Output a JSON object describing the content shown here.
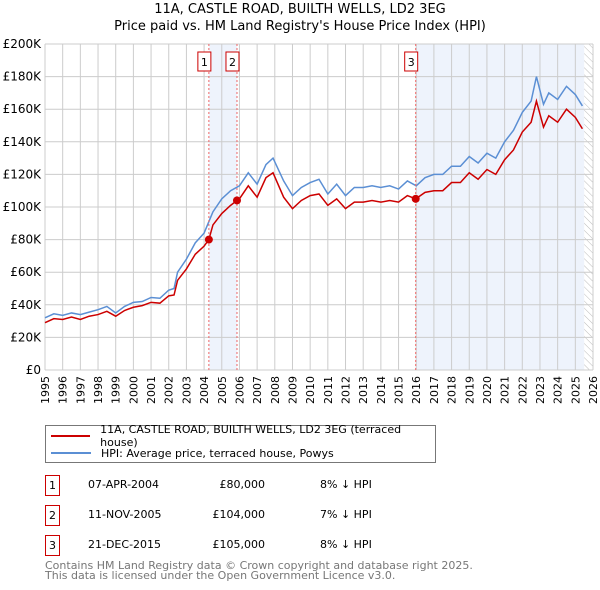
{
  "chart_data": {
    "type": "line",
    "title": "11A, CASTLE ROAD, BUILTH WELLS, LD2 3EG",
    "subtitle": "Price paid vs. HM Land Registry's House Price Index (HPI)",
    "xlim": [
      1995,
      2026
    ],
    "ylim": [
      0,
      200000
    ],
    "y_ticks": [
      "£0",
      "£20K",
      "£40K",
      "£60K",
      "£80K",
      "£100K",
      "£120K",
      "£140K",
      "£160K",
      "£180K",
      "£200K"
    ],
    "x_ticks": [
      "1995",
      "1996",
      "1997",
      "1998",
      "1999",
      "2000",
      "2001",
      "2002",
      "2003",
      "2004",
      "2005",
      "2006",
      "2007",
      "2008",
      "2009",
      "2010",
      "2011",
      "2012",
      "2013",
      "2014",
      "2015",
      "2016",
      "2017",
      "2018",
      "2019",
      "2020",
      "2021",
      "2022",
      "2023",
      "2024",
      "2025",
      "2026"
    ],
    "series": [
      {
        "name": "HPI: Average price, terraced house, Powys",
        "color": "#5b8fd4",
        "x": [
          1995,
          1995.5,
          1996,
          1996.5,
          1997,
          1997.5,
          1998,
          1998.5,
          1999,
          1999.5,
          2000,
          2000.5,
          2001,
          2001.5,
          2002,
          2002.3,
          2002.5,
          2003,
          2003.5,
          2004,
          2004.5,
          2005,
          2005.5,
          2006,
          2006.5,
          2007,
          2007.5,
          2007.9,
          2008.5,
          2009,
          2009.5,
          2010,
          2010.5,
          2011,
          2011.5,
          2012,
          2012.5,
          2013,
          2013.5,
          2014,
          2014.5,
          2015,
          2015.5,
          2016,
          2016.5,
          2017,
          2017.5,
          2018,
          2018.5,
          2019,
          2019.5,
          2020,
          2020.5,
          2021,
          2021.5,
          2022,
          2022.5,
          2022.8,
          2023.2,
          2023.5,
          2024,
          2024.5,
          2025,
          2025.4
        ],
        "y": [
          32000,
          34500,
          33500,
          35000,
          34000,
          35500,
          37000,
          39000,
          35000,
          39000,
          41500,
          42000,
          44500,
          44000,
          49000,
          50000,
          60000,
          68000,
          78000,
          84000,
          97000,
          105000,
          110000,
          113000,
          121000,
          114000,
          126000,
          130000,
          116000,
          107000,
          112000,
          115000,
          117000,
          108000,
          114000,
          107000,
          112000,
          112000,
          113000,
          112000,
          113000,
          111000,
          116000,
          113000,
          118000,
          120000,
          120000,
          125000,
          125000,
          131000,
          127000,
          133000,
          130000,
          140000,
          147000,
          158000,
          165000,
          180000,
          163000,
          170000,
          166000,
          174000,
          169000,
          162000
        ]
      },
      {
        "name": "11A, CASTLE ROAD, BUILTH WELLS, LD2 3EG (terraced house)",
        "color": "#cc0000",
        "x": [
          1995,
          1995.5,
          1996,
          1996.5,
          1997,
          1997.5,
          1998,
          1998.5,
          1999,
          1999.5,
          2000,
          2000.5,
          2001,
          2001.5,
          2002,
          2002.3,
          2002.5,
          2003,
          2003.5,
          2004,
          2004.27,
          2004.5,
          2005,
          2005.5,
          2005.86,
          2006,
          2006.5,
          2007,
          2007.5,
          2007.9,
          2008.5,
          2009,
          2009.5,
          2010,
          2010.5,
          2011,
          2011.5,
          2012,
          2012.5,
          2013,
          2013.5,
          2014,
          2014.5,
          2015,
          2015.5,
          2015.97,
          2016.5,
          2017,
          2017.5,
          2018,
          2018.5,
          2019,
          2019.5,
          2020,
          2020.5,
          2021,
          2021.5,
          2022,
          2022.5,
          2022.8,
          2023.2,
          2023.5,
          2024,
          2024.5,
          2025,
          2025.4
        ],
        "y": [
          29000,
          31500,
          31000,
          32500,
          31000,
          33000,
          34000,
          36000,
          33000,
          36500,
          38500,
          39500,
          41500,
          41000,
          45500,
          46000,
          55000,
          62000,
          71000,
          76000,
          80000,
          89000,
          96000,
          101000,
          104000,
          105000,
          113000,
          106000,
          118000,
          121000,
          106000,
          99000,
          104000,
          107000,
          108000,
          101000,
          105000,
          99000,
          103000,
          103000,
          104000,
          103000,
          104000,
          103000,
          107000,
          105000,
          109000,
          110000,
          110000,
          115000,
          115000,
          121000,
          117000,
          123000,
          120000,
          129000,
          135000,
          146000,
          152000,
          165000,
          149000,
          156000,
          152000,
          160000,
          155000,
          148000
        ]
      }
    ],
    "sales": [
      {
        "label": "1",
        "date": "07-APR-2004",
        "price": "£80,000",
        "hpi": "8% ↓ HPI",
        "x": 2004.27,
        "y": 80000
      },
      {
        "label": "2",
        "date": "11-NOV-2005",
        "price": "£104,000",
        "hpi": "7% ↓ HPI",
        "x": 2005.86,
        "y": 104000
      },
      {
        "label": "3",
        "date": "21-DEC-2015",
        "price": "£105,000",
        "hpi": "8% ↓ HPI",
        "x": 2015.97,
        "y": 105000
      }
    ],
    "shaded_ranges": [
      [
        2004.27,
        2005.86
      ],
      [
        2015.97,
        2025.5
      ]
    ],
    "hatched_from": 2025.5
  },
  "legend": {
    "red": "11A, CASTLE ROAD, BUILTH WELLS, LD2 3EG (terraced house)",
    "blue": "HPI: Average price, terraced house, Powys"
  },
  "footer": [
    "Contains HM Land Registry data © Crown copyright and database right 2025.",
    "This data is licensed under the Open Government Licence v3.0."
  ]
}
